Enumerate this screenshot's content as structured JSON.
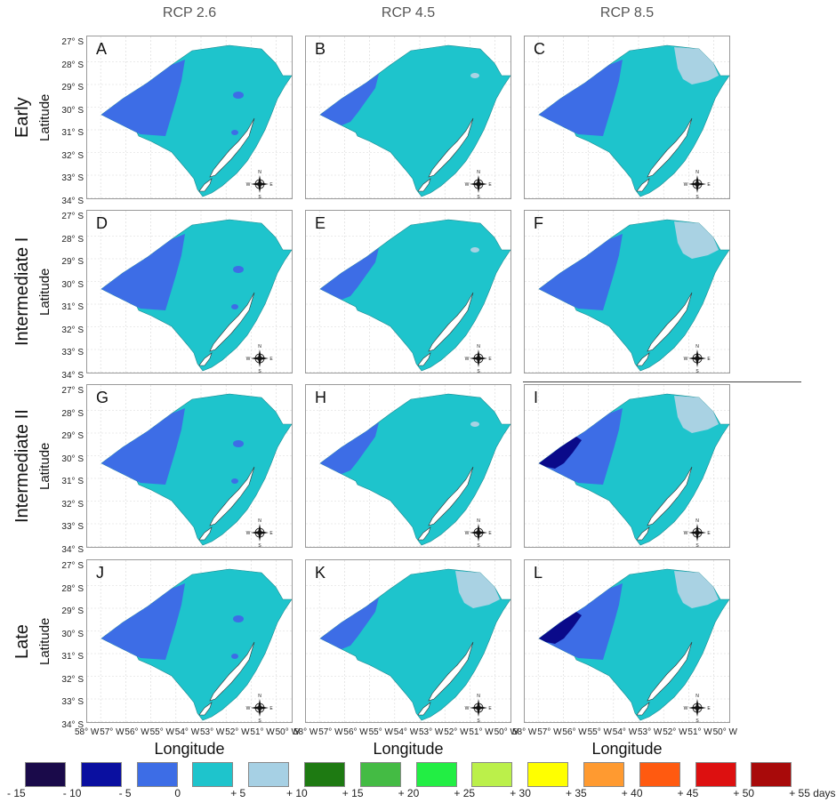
{
  "column_headers": [
    "RCP 2.6",
    "RCP 4.5",
    "RCP 8.5"
  ],
  "row_headers": [
    "Early",
    "Intermediate I",
    "Intermediate II",
    "Late"
  ],
  "latitude_axis_title": "Latitude",
  "longitude_axis_title": "Longitude",
  "latitude_ticks": [
    "27° S",
    "28° S",
    "29° S",
    "30° S",
    "31° S",
    "32° S",
    "33° S",
    "34° S"
  ],
  "longitude_ticks": [
    "58° W",
    "57° W",
    "56° W",
    "55° W",
    "54° W",
    "53° W",
    "52° W",
    "51° W",
    "50° W"
  ],
  "compass": {
    "n": "N",
    "s": "S",
    "e": "E",
    "w": "W"
  },
  "panels": [
    {
      "letter": "A",
      "west": 2,
      "mid": 0,
      "east": 0
    },
    {
      "letter": "B",
      "west": 1,
      "mid": 0,
      "east": 1
    },
    {
      "letter": "C",
      "west": 2,
      "mid": 0,
      "east": 2
    },
    {
      "letter": "D",
      "west": 2,
      "mid": 0,
      "east": 0
    },
    {
      "letter": "E",
      "west": 1,
      "mid": 0,
      "east": 1
    },
    {
      "letter": "F",
      "west": 2,
      "mid": 0,
      "east": 2
    },
    {
      "letter": "G",
      "west": 2,
      "mid": 0,
      "east": 0
    },
    {
      "letter": "H",
      "west": 1,
      "mid": 0,
      "east": 1
    },
    {
      "letter": "I",
      "west": 3,
      "mid": 0,
      "east": 2
    },
    {
      "letter": "J",
      "west": 2,
      "mid": 0,
      "east": 0
    },
    {
      "letter": "K",
      "west": 1,
      "mid": 0,
      "east": 2
    },
    {
      "letter": "L",
      "west": 3,
      "mid": 0,
      "east": 2
    }
  ],
  "legend": {
    "colors": [
      "#1a0a4a",
      "#0a0fa0",
      "#3d6de6",
      "#1ec4cc",
      "#a6d0e4",
      "#1e7a12",
      "#44bb44",
      "#22ee44",
      "#bbf04a",
      "#ffff00",
      "#ff9a30",
      "#ff5a10",
      "#dd1010",
      "#a80a0a"
    ],
    "labels": [
      "- 15",
      "- 10",
      "- 5",
      "0",
      "+ 5",
      "+ 10",
      "+ 15",
      "+ 20",
      "+ 25",
      "+ 30",
      "+ 35",
      "+ 40",
      "+ 45",
      "+ 50",
      "+ 55 days"
    ]
  },
  "palette": {
    "teal": "#1ec4cc",
    "blue": "#3d6de6",
    "navy": "#0a0a8a",
    "light": "#a9d2e3"
  }
}
